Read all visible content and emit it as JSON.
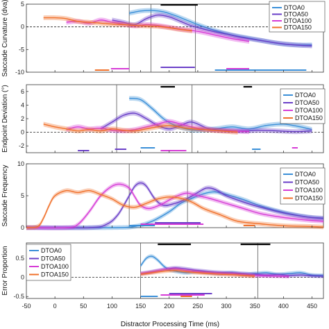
{
  "colors": {
    "DTOA0": "#3a8fd8",
    "DTOA50": "#6a3fc8",
    "DTOA100": "#d63bd6",
    "DTOA150": "#f0702a"
  },
  "x_axis": {
    "label": "Distractor Processing Time (ms)",
    "ticks": [
      "-50",
      "0",
      "50",
      "100",
      "150",
      "200",
      "250",
      "300",
      "350",
      "400",
      "450"
    ],
    "range": [
      -50,
      470
    ]
  },
  "chart_data": [
    {
      "type": "line",
      "ylabel": "Saccade Curvature (dva)",
      "ylim": [
        -10,
        5
      ],
      "yticks": [
        "5",
        "0",
        "-5",
        "-10"
      ],
      "legend": [
        "DTOA0",
        "DTOA50",
        "DTOA100",
        "DTOA150"
      ],
      "legend_position": "top-right",
      "series": [
        {
          "name": "DTOA0",
          "x": [
            130,
            150,
            170,
            190,
            210,
            230,
            250,
            280,
            310,
            340,
            370,
            400,
            430,
            450
          ],
          "y": [
            3.0,
            3.5,
            3.6,
            3.3,
            2.5,
            1.5,
            0.5,
            -0.8,
            -1.8,
            -2.5,
            -3.2,
            -3.8,
            -4.0,
            -4.0
          ]
        },
        {
          "name": "DTOA50",
          "x": [
            100,
            120,
            140,
            160,
            180,
            200,
            220,
            240,
            270,
            300,
            330,
            360,
            390,
            420,
            450
          ],
          "y": [
            1.5,
            1.0,
            0.5,
            1.8,
            2.6,
            2.2,
            1.2,
            0.2,
            -0.8,
            -1.6,
            -2.4,
            -3.0,
            -3.6,
            -4.0,
            -4.2
          ]
        },
        {
          "name": "DTOA100",
          "x": [
            20,
            40,
            60,
            80,
            100,
            120,
            140,
            160,
            180,
            200,
            220,
            250,
            280,
            310,
            340
          ],
          "y": [
            1.0,
            1.2,
            0.8,
            1.5,
            1.0,
            0.6,
            0.2,
            0.5,
            0.3,
            -0.1,
            -0.5,
            -1.0,
            -1.8,
            -2.6,
            -3.2
          ]
        },
        {
          "name": "DTOA150",
          "x": [
            -20,
            0,
            20,
            40,
            60,
            80,
            100,
            120,
            140,
            160,
            180,
            200,
            220,
            240
          ],
          "y": [
            2.0,
            2.0,
            1.8,
            1.2,
            1.0,
            0.8,
            0.6,
            0.5,
            0.3,
            0.2,
            0.1,
            -0.2,
            -0.6,
            -0.9
          ]
        }
      ]
    },
    {
      "type": "line",
      "ylabel": "Endpoint Deviation (°)",
      "ylim": [
        -3,
        7
      ],
      "yticks": [
        "6",
        "4",
        "2",
        "0",
        "-2"
      ],
      "legend": [
        "DTOA0",
        "DTOA50",
        "DTOA100",
        "DTOA150"
      ],
      "legend_position": "top-right",
      "series": [
        {
          "name": "DTOA0",
          "x": [
            130,
            150,
            170,
            190,
            210,
            230,
            250,
            280,
            310,
            340,
            370,
            400,
            430,
            450
          ],
          "y": [
            5.0,
            4.8,
            3.5,
            2.0,
            1.0,
            0.5,
            0.3,
            0.5,
            0.8,
            0.5,
            1.0,
            1.2,
            0.8,
            0.4
          ]
        },
        {
          "name": "DTOA50",
          "x": [
            80,
            100,
            120,
            140,
            160,
            180,
            200,
            220,
            240,
            270,
            300,
            330,
            360,
            390,
            420,
            450
          ],
          "y": [
            0.5,
            1.5,
            2.5,
            2.8,
            2.0,
            1.0,
            0.5,
            1.0,
            1.5,
            0.5,
            0.3,
            0.2,
            0.3,
            0.2,
            0.1,
            0.2
          ]
        },
        {
          "name": "DTOA100",
          "x": [
            20,
            40,
            60,
            80,
            100,
            120,
            140,
            160,
            180,
            200,
            220,
            250,
            280,
            310,
            340
          ],
          "y": [
            0.4,
            0.8,
            0.5,
            0.6,
            0.3,
            0.2,
            0.4,
            0.8,
            1.2,
            1.6,
            1.2,
            0.6,
            0.3,
            0.2,
            0.1
          ]
        },
        {
          "name": "DTOA150",
          "x": [
            -20,
            0,
            20,
            40,
            60,
            80,
            100,
            120,
            140,
            160,
            180,
            200,
            230,
            260,
            290,
            320
          ],
          "y": [
            1.2,
            0.8,
            0.5,
            0.2,
            0.4,
            0.2,
            0.5,
            0.3,
            0.2,
            0.5,
            0.8,
            1.0,
            0.6,
            0.4,
            0.2,
            0.0
          ]
        }
      ]
    },
    {
      "type": "line",
      "ylabel": "Saccade Frequency",
      "ylim": [
        0,
        10
      ],
      "yticks": [
        "10",
        "5",
        "0"
      ],
      "legend": [
        "DTOA0",
        "DTOA50",
        "DTOA100",
        "DTOA150"
      ],
      "legend_position": "right",
      "series": [
        {
          "name": "DTOA0",
          "x": [
            -50,
            100,
            140,
            170,
            200,
            220,
            240,
            260,
            280,
            300,
            330,
            360,
            400,
            440,
            470
          ],
          "y": [
            0.0,
            0.0,
            0.2,
            1.0,
            2.5,
            3.8,
            4.6,
            5.3,
            5.6,
            5.2,
            4.4,
            3.4,
            2.4,
            1.7,
            1.4
          ]
        },
        {
          "name": "DTOA50",
          "x": [
            -50,
            60,
            90,
            110,
            130,
            140,
            150,
            160,
            175,
            190,
            210,
            230,
            250,
            265,
            280,
            300,
            330,
            360,
            400,
            440,
            470
          ],
          "y": [
            0.0,
            0.0,
            0.5,
            2.0,
            5.0,
            6.5,
            7.0,
            6.5,
            4.5,
            3.5,
            3.8,
            4.5,
            5.5,
            6.2,
            6.0,
            5.0,
            4.0,
            3.2,
            2.3,
            1.7,
            1.5
          ]
        },
        {
          "name": "DTOA100",
          "x": [
            -50,
            20,
            40,
            60,
            80,
            100,
            115,
            130,
            140,
            150,
            165,
            185,
            210,
            230,
            250,
            270,
            300,
            330,
            360,
            400,
            440,
            470
          ],
          "y": [
            0.0,
            0.0,
            0.5,
            2.5,
            5.0,
            6.5,
            6.8,
            6.2,
            4.8,
            3.5,
            3.0,
            3.6,
            4.8,
            5.4,
            5.0,
            4.6,
            3.8,
            3.0,
            2.2,
            1.6,
            1.2,
            1.0
          ]
        },
        {
          "name": "DTOA150",
          "x": [
            -50,
            -30,
            -20,
            -10,
            0,
            20,
            40,
            60,
            80,
            100,
            120,
            140,
            160,
            180,
            200,
            220,
            240,
            260,
            290,
            320,
            360,
            400,
            440,
            470
          ],
          "y": [
            0.0,
            0.2,
            1.5,
            3.5,
            5.0,
            5.8,
            5.5,
            5.8,
            5.2,
            4.5,
            3.5,
            3.2,
            3.8,
            4.5,
            4.8,
            4.6,
            4.0,
            3.0,
            2.0,
            1.0,
            0.6,
            0.3,
            0.2,
            0.1
          ]
        }
      ]
    },
    {
      "type": "line",
      "ylabel": "Error Proportion",
      "ylim": [
        -0.55,
        0.9
      ],
      "yticks": [
        "0.5",
        "0",
        "-0.5"
      ],
      "legend": [
        "DTOA0",
        "DTOA50",
        "DTOA100",
        "DTOA150"
      ],
      "legend_position": "top-left",
      "series": [
        {
          "name": "DTOA0",
          "x": [
            150,
            160,
            170,
            180,
            190,
            200,
            215,
            230,
            250,
            270,
            290,
            310,
            330,
            350,
            370,
            390,
            410,
            430,
            450,
            470
          ],
          "y": [
            0.3,
            0.5,
            0.55,
            0.45,
            0.3,
            0.2,
            0.15,
            0.12,
            0.15,
            0.12,
            0.1,
            0.12,
            0.08,
            0.1,
            0.12,
            0.08,
            0.1,
            0.12,
            0.06,
            0.05
          ]
        },
        {
          "name": "DTOA50",
          "x": [
            150,
            170,
            190,
            210,
            230,
            250,
            270,
            290,
            310,
            330,
            350,
            370,
            390,
            410,
            430,
            450,
            470
          ],
          "y": [
            0.1,
            0.15,
            0.2,
            0.25,
            0.22,
            0.18,
            0.15,
            0.13,
            0.12,
            0.1,
            0.08,
            0.06,
            0.07,
            0.05,
            0.06,
            0.04,
            0.03
          ]
        },
        {
          "name": "DTOA100",
          "x": [
            150,
            170,
            190,
            210,
            230,
            250,
            270,
            290,
            310,
            330,
            350,
            370,
            390,
            410
          ],
          "y": [
            0.1,
            0.14,
            0.2,
            0.22,
            0.18,
            0.15,
            0.12,
            0.1,
            0.09,
            0.07,
            0.05,
            0.04,
            0.03,
            0.02
          ]
        },
        {
          "name": "DTOA150",
          "x": [
            150,
            170,
            190,
            210,
            230,
            250,
            270,
            290,
            310,
            330,
            350
          ],
          "y": [
            0.08,
            0.12,
            0.16,
            0.18,
            0.15,
            0.12,
            0.1,
            0.08,
            0.07,
            0.05,
            0.03
          ]
        }
      ]
    }
  ]
}
